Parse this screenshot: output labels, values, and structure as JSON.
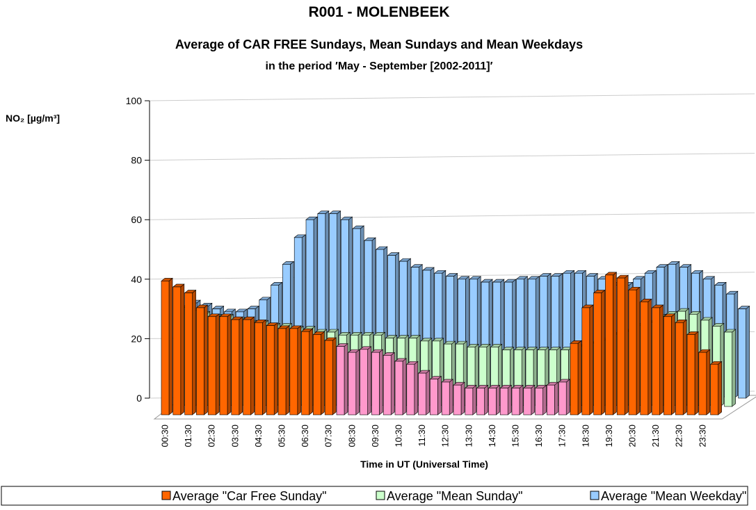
{
  "chart_data": {
    "type": "bar3d",
    "title": "R001 - MOLENBEEK",
    "subtitle": "Average of CAR FREE Sundays, Mean Sundays and Mean Weekdays",
    "period": "in the period  ′May - September [2002-2011]′",
    "y_label": "NO₂  [µg/m³]",
    "x_label": "Time in UT (Universal Time)",
    "categories": [
      "00:30",
      null,
      "01:30",
      null,
      "02:30",
      null,
      "03:30",
      null,
      "04:30",
      null,
      "05:30",
      null,
      "06:30",
      null,
      "07:30",
      null,
      "08:30",
      null,
      "09:30",
      null,
      "10:30",
      null,
      "11:30",
      null,
      "12:30",
      null,
      "13:30",
      null,
      "14:30",
      null,
      "15:30",
      null,
      "16:30",
      null,
      "17:30",
      null,
      "18:30",
      null,
      "19:30",
      null,
      "20:30",
      null,
      "21:30",
      null,
      "22:30",
      null,
      "23:30",
      null
    ],
    "ylim": [
      0,
      100
    ],
    "yticks": [
      0,
      20,
      40,
      60,
      80,
      100
    ],
    "grid": true,
    "legend": "bottom",
    "series": [
      {
        "name": "Average \"Car Free Sunday\"",
        "color": "#ff6600",
        "values": [
          45,
          43,
          41,
          36,
          33,
          33,
          32,
          32,
          31,
          30,
          29,
          29,
          28,
          27,
          25,
          23,
          21,
          22,
          21,
          20,
          18,
          17,
          14,
          12,
          11,
          10,
          9,
          9,
          9,
          9,
          9,
          9,
          9,
          10,
          11,
          24,
          36,
          41,
          47,
          46,
          42,
          38,
          36,
          33,
          31,
          27,
          21,
          17
        ],
        "colors": [
          "#ff6600",
          "#ff6600",
          "#ff6600",
          "#ff6600",
          "#ff6600",
          "#ff6600",
          "#ff6600",
          "#ff6600",
          "#ff6600",
          "#ff6600",
          "#ff6600",
          "#ff6600",
          "#ff6600",
          "#ff6600",
          "#ff6600",
          "#ff99cc",
          "#ff99cc",
          "#ff99cc",
          "#ff99cc",
          "#ff99cc",
          "#ff99cc",
          "#ff99cc",
          "#ff99cc",
          "#ff99cc",
          "#ff99cc",
          "#ff99cc",
          "#ff99cc",
          "#ff99cc",
          "#ff99cc",
          "#ff99cc",
          "#ff99cc",
          "#ff99cc",
          "#ff99cc",
          "#ff99cc",
          "#ff99cc",
          "#ff6600",
          "#ff6600",
          "#ff6600",
          "#ff6600",
          "#ff6600",
          "#ff6600",
          "#ff6600",
          "#ff6600",
          "#ff6600",
          "#ff6600",
          "#ff6600",
          "#ff6600",
          "#ff6600"
        ]
      },
      {
        "name": "Average \"Mean Sunday\"",
        "color": "#ccffcc",
        "values": [
          33,
          32,
          31,
          30,
          30,
          29,
          28,
          28,
          27,
          27,
          26,
          26,
          25,
          25,
          24,
          24,
          24,
          24,
          23,
          23,
          23,
          22,
          22,
          21,
          21,
          20,
          20,
          20,
          19,
          19,
          19,
          19,
          19,
          19,
          20,
          21,
          22,
          24,
          25,
          27,
          28,
          30,
          31,
          32,
          31,
          29,
          27,
          25
        ]
      },
      {
        "name": "Average \"Mean Weekday\"",
        "color": "#99ccff",
        "values": [
          32,
          31,
          30,
          29,
          29,
          30,
          33,
          38,
          45,
          54,
          60,
          62,
          62,
          60,
          57,
          53,
          50,
          48,
          46,
          44,
          43,
          42,
          41,
          40,
          40,
          39,
          39,
          39,
          40,
          40,
          41,
          41,
          42,
          42,
          41,
          40,
          38,
          38,
          40,
          42,
          44,
          45,
          44,
          42,
          40,
          38,
          35,
          30
        ]
      }
    ]
  }
}
